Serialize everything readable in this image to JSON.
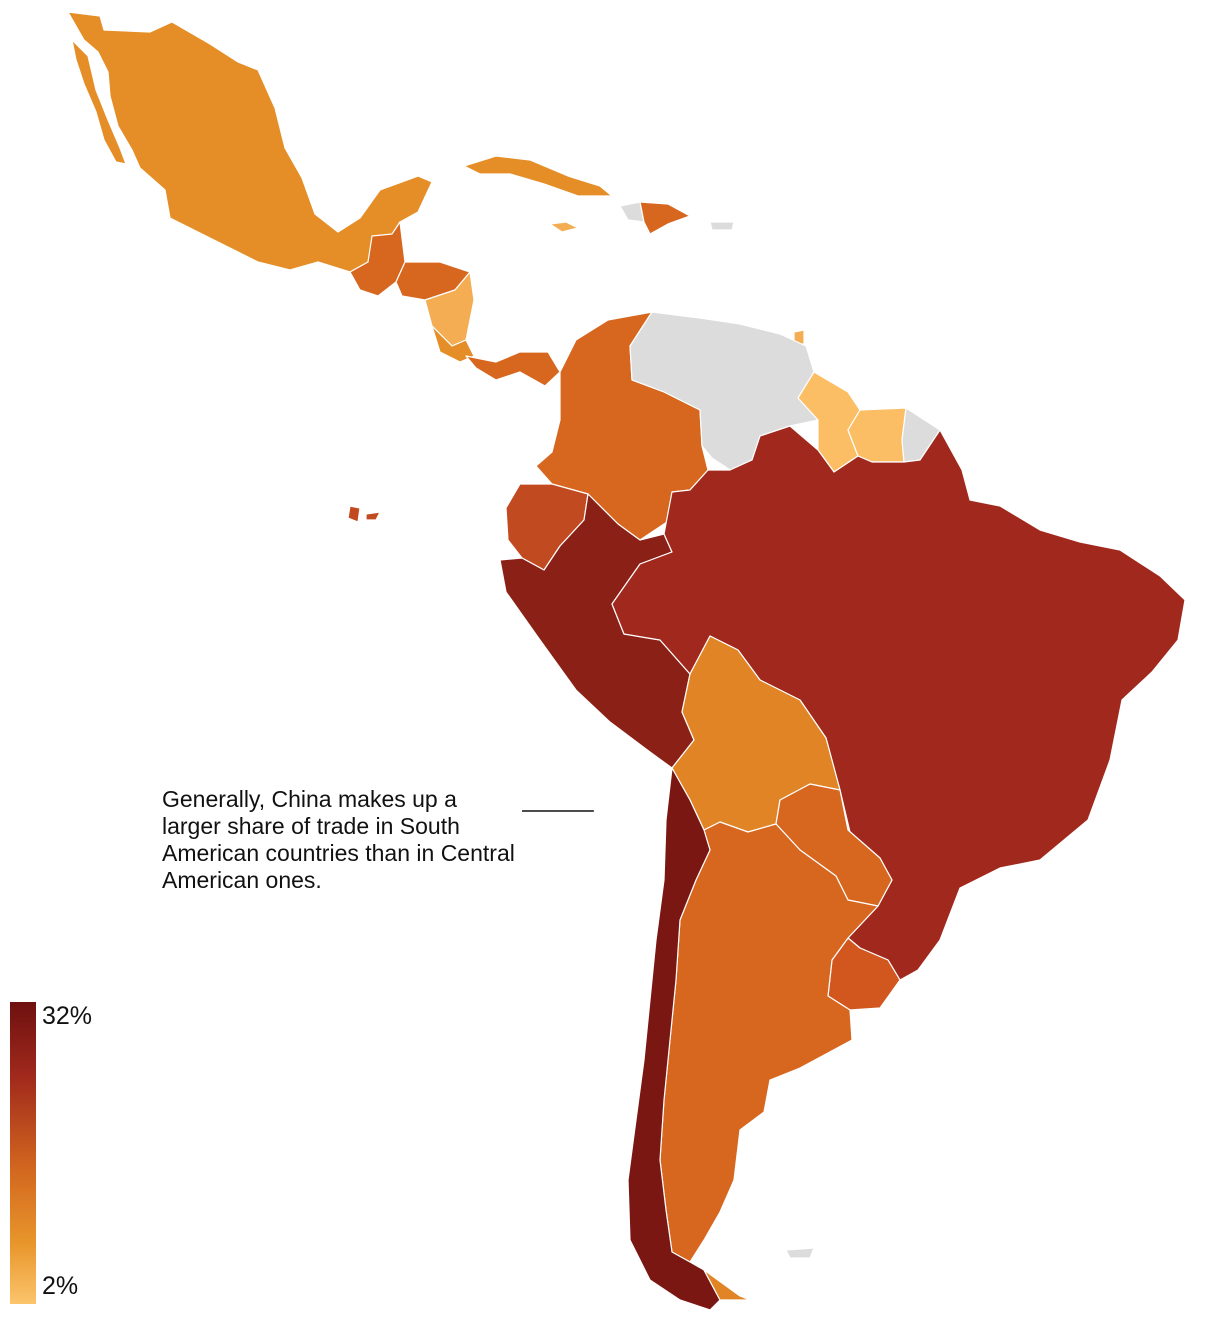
{
  "annotation": {
    "text": "Generally, China makes up a larger share of trade in South American countries than in Central American ones."
  },
  "legend": {
    "max_label": "32%",
    "min_label": "2%",
    "color_high": "#6e1010",
    "color_low": "#fcc46c",
    "no_data_color": "#dcdcdc"
  },
  "icons": [
    "arrow-right-icon"
  ]
}
